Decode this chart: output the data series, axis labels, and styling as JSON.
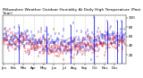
{
  "title": "Milwaukee Weather Outdoor Humidity At Daily High Temperature (Past Year)",
  "title_fontsize": 3.2,
  "background_color": "#ffffff",
  "plot_bg_color": "#ffffff",
  "grid_color": "#888888",
  "n_points": 365,
  "ylim": [
    0,
    105
  ],
  "yticks": [
    20,
    40,
    60,
    80,
    100
  ],
  "ylabel_fontsize": 3.0,
  "xlabel_fontsize": 2.8,
  "blue_color": "#0000dd",
  "red_color": "#dd0000",
  "line_width": 0.5,
  "seed": 42,
  "month_starts": [
    0,
    31,
    59,
    90,
    120,
    151,
    181,
    212,
    243,
    273,
    304,
    334
  ],
  "month_labels": [
    "Jan",
    "Feb",
    "Mar",
    "Apr",
    "May",
    "Jun",
    "Jul",
    "Aug",
    "Sep",
    "Oct",
    "Nov",
    "Dec"
  ]
}
